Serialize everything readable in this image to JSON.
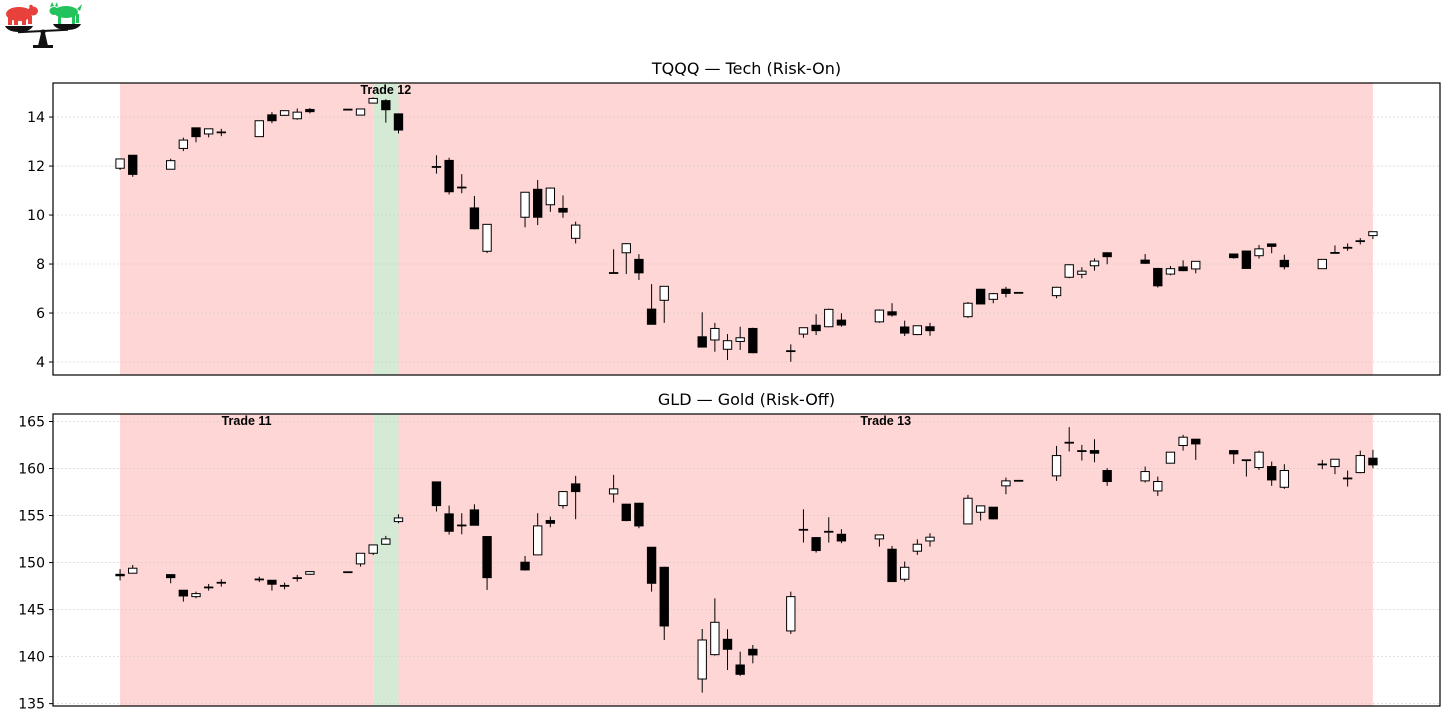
{
  "logo": {
    "icon": "bear-bull-balance-scale-logo",
    "colors": {
      "bear": "#e8403a",
      "bull": "#22c35a",
      "scale": "#111111"
    }
  },
  "colors": {
    "losing_trade_span": "#ffd6d6",
    "winning_trade_span": "#d5ead5",
    "up_candle_fill": "#ffffff",
    "down_candle_fill": "#000000",
    "candle_edge": "#000000",
    "grid": "#cccccc"
  },
  "chart_data": [
    {
      "type": "candlestick",
      "title": "TQQQ — Tech (Risk-On)",
      "xlabel": "",
      "ylabel": "",
      "ylim": [
        3.47,
        15.39
      ],
      "xlim": [
        -5.3,
        104.3
      ],
      "yticks": [
        "4",
        "6",
        "8",
        "10",
        "12",
        "14"
      ],
      "ytick_values": [
        4,
        6,
        8,
        10,
        12,
        14
      ],
      "grid": "horizontal dotted",
      "spans": [
        {
          "trade": "Trade 11",
          "from": 0,
          "to": 20,
          "result": "loss",
          "labeled": false
        },
        {
          "trade": "Trade 12",
          "from": 20,
          "to": 22,
          "result": "win",
          "labeled": true
        },
        {
          "trade": "Trade 13",
          "from": 22,
          "to": 99,
          "result": "loss",
          "labeled": false
        }
      ],
      "x": [
        0,
        1,
        4,
        5,
        6,
        7,
        8,
        11,
        12,
        13,
        14,
        15,
        18,
        19,
        20,
        21,
        22,
        25,
        26,
        27,
        28,
        29,
        32,
        33,
        34,
        35,
        36,
        39,
        40,
        41,
        42,
        43,
        46,
        47,
        48,
        49,
        50,
        53,
        54,
        55,
        56,
        57,
        60,
        61,
        62,
        63,
        64,
        67,
        68,
        69,
        70,
        71,
        74,
        75,
        76,
        77,
        78,
        81,
        82,
        83,
        84,
        85,
        88,
        89,
        90,
        91,
        92,
        95,
        96,
        97,
        98,
        99
      ],
      "ohlc": [
        [
          11.91,
          12.3,
          11.84,
          12.29
        ],
        [
          12.44,
          12.44,
          11.56,
          11.66
        ],
        [
          11.87,
          12.3,
          11.87,
          12.22
        ],
        [
          12.72,
          13.16,
          12.61,
          13.06
        ],
        [
          13.56,
          13.56,
          12.97,
          13.2
        ],
        [
          13.31,
          13.52,
          13.17,
          13.52
        ],
        [
          13.37,
          13.52,
          13.22,
          13.39
        ],
        [
          13.2,
          13.85,
          13.2,
          13.85
        ],
        [
          14.09,
          14.2,
          13.75,
          13.85
        ],
        [
          14.07,
          14.26,
          14.05,
          14.26
        ],
        [
          13.93,
          14.35,
          13.89,
          14.2
        ],
        [
          14.31,
          14.37,
          14.15,
          14.22
        ],
        [
          14.3,
          14.32,
          14.3,
          14.32
        ],
        [
          14.08,
          14.33,
          14.08,
          14.33
        ],
        [
          14.57,
          14.8,
          14.55,
          14.76
        ],
        [
          14.67,
          14.73,
          13.77,
          14.3
        ],
        [
          14.13,
          14.15,
          13.33,
          13.47
        ],
        [
          11.98,
          12.44,
          11.69,
          11.96
        ],
        [
          12.23,
          12.34,
          10.84,
          10.95
        ],
        [
          11.14,
          11.67,
          10.89,
          11.12
        ],
        [
          10.29,
          10.78,
          9.42,
          9.44
        ],
        [
          8.52,
          9.62,
          8.45,
          9.62
        ],
        [
          9.91,
          10.93,
          9.5,
          10.93
        ],
        [
          11.05,
          11.43,
          9.59,
          9.91
        ],
        [
          10.42,
          11.12,
          10.13,
          11.1
        ],
        [
          10.27,
          10.8,
          9.89,
          10.12
        ],
        [
          9.05,
          9.73,
          8.84,
          9.59
        ],
        [
          7.65,
          8.6,
          7.64,
          7.64
        ],
        [
          8.46,
          8.85,
          7.59,
          8.83
        ],
        [
          8.19,
          8.4,
          7.35,
          7.64
        ],
        [
          6.16,
          7.18,
          5.54,
          5.54
        ],
        [
          6.52,
          7.09,
          5.6,
          7.09
        ],
        [
          5.03,
          6.03,
          4.61,
          4.61
        ],
        [
          4.9,
          5.6,
          4.42,
          5.37
        ],
        [
          4.52,
          5.14,
          4.08,
          4.87
        ],
        [
          4.84,
          5.44,
          4.49,
          4.99
        ],
        [
          5.37,
          5.4,
          4.36,
          4.38
        ],
        [
          4.46,
          4.72,
          4.01,
          4.44
        ],
        [
          5.14,
          5.4,
          4.99,
          5.4
        ],
        [
          5.5,
          5.95,
          5.1,
          5.28
        ],
        [
          5.44,
          6.18,
          5.42,
          6.15
        ],
        [
          5.71,
          5.99,
          5.44,
          5.51
        ],
        [
          5.64,
          6.15,
          5.6,
          6.12
        ],
        [
          6.05,
          6.4,
          5.85,
          5.92
        ],
        [
          5.43,
          5.69,
          5.06,
          5.18
        ],
        [
          5.12,
          5.48,
          5.1,
          5.48
        ],
        [
          5.44,
          5.6,
          5.07,
          5.28
        ],
        [
          5.85,
          6.45,
          5.8,
          6.4
        ],
        [
          6.97,
          6.99,
          6.37,
          6.37
        ],
        [
          6.56,
          6.82,
          6.4,
          6.79
        ],
        [
          6.97,
          7.07,
          6.64,
          6.8
        ],
        [
          6.84,
          6.85,
          6.81,
          6.82
        ],
        [
          6.71,
          7.07,
          6.6,
          7.05
        ],
        [
          7.46,
          7.99,
          7.42,
          7.97
        ],
        [
          7.58,
          7.87,
          7.42,
          7.71
        ],
        [
          7.93,
          8.23,
          7.73,
          8.12
        ],
        [
          8.46,
          8.48,
          7.99,
          8.3
        ],
        [
          8.16,
          8.41,
          8.01,
          8.03
        ],
        [
          7.82,
          7.84,
          7.04,
          7.11
        ],
        [
          7.59,
          7.92,
          7.54,
          7.81
        ],
        [
          7.88,
          8.15,
          7.71,
          7.73
        ],
        [
          7.8,
          8.12,
          7.62,
          8.11
        ],
        [
          8.41,
          8.43,
          8.22,
          8.26
        ],
        [
          8.53,
          8.53,
          7.82,
          7.82
        ],
        [
          8.34,
          8.78,
          8.22,
          8.62
        ],
        [
          8.82,
          8.84,
          8.44,
          8.72
        ],
        [
          8.15,
          8.38,
          7.78,
          7.89
        ],
        [
          7.81,
          8.2,
          7.8,
          8.19
        ],
        [
          8.47,
          8.76,
          8.45,
          8.46
        ],
        [
          8.66,
          8.84,
          8.54,
          8.68
        ],
        [
          8.93,
          9.06,
          8.8,
          8.95
        ],
        [
          9.16,
          9.33,
          9.02,
          9.32
        ]
      ]
    },
    {
      "type": "candlestick",
      "title": "GLD — Gold (Risk-Off)",
      "xlabel": "",
      "ylabel": "",
      "ylim": [
        134.75,
        165.8
      ],
      "xlim": [
        -5.3,
        104.3
      ],
      "yticks": [
        "135",
        "140",
        "145",
        "150",
        "155",
        "160",
        "165"
      ],
      "ytick_values": [
        135,
        140,
        145,
        150,
        155,
        160,
        165
      ],
      "grid": "horizontal dotted",
      "spans": [
        {
          "trade": "Trade 11",
          "from": 0,
          "to": 20,
          "result": "loss",
          "labeled": true
        },
        {
          "trade": "Trade 12",
          "from": 20,
          "to": 22,
          "result": "win",
          "labeled": false
        },
        {
          "trade": "Trade 13",
          "from": 22,
          "to": 99,
          "result": "loss",
          "labeled": true
        }
      ],
      "x": [
        0,
        1,
        4,
        5,
        6,
        7,
        8,
        11,
        12,
        13,
        14,
        15,
        18,
        19,
        20,
        21,
        22,
        25,
        26,
        27,
        28,
        29,
        32,
        33,
        34,
        35,
        36,
        39,
        40,
        41,
        42,
        43,
        46,
        47,
        48,
        49,
        50,
        53,
        54,
        55,
        56,
        57,
        60,
        61,
        62,
        63,
        64,
        67,
        68,
        69,
        70,
        71,
        74,
        75,
        76,
        77,
        78,
        81,
        82,
        83,
        84,
        85,
        88,
        89,
        90,
        91,
        92,
        95,
        96,
        97,
        98,
        99
      ],
      "ohlc": [
        [
          148.75,
          149.3,
          148.1,
          148.6
        ],
        [
          148.87,
          149.75,
          148.85,
          149.4
        ],
        [
          148.72,
          148.75,
          147.8,
          148.4
        ],
        [
          147.06,
          147.06,
          145.85,
          146.45
        ],
        [
          146.38,
          146.91,
          146.21,
          146.7
        ],
        [
          147.33,
          147.73,
          147.02,
          147.4
        ],
        [
          147.84,
          148.23,
          147.45,
          147.9
        ],
        [
          148.2,
          148.5,
          147.94,
          148.25
        ],
        [
          148.12,
          148.12,
          147.02,
          147.7
        ],
        [
          147.57,
          147.87,
          147.16,
          147.53
        ],
        [
          148.35,
          148.69,
          147.98,
          148.39
        ],
        [
          148.76,
          149.1,
          148.7,
          149.04
        ],
        [
          149.0,
          149.05,
          148.98,
          149.02
        ],
        [
          149.86,
          151.0,
          149.57,
          150.99
        ],
        [
          150.99,
          151.9,
          150.8,
          151.88
        ],
        [
          151.95,
          152.84,
          151.9,
          152.52
        ],
        [
          154.36,
          155.14,
          154.18,
          154.75
        ],
        [
          158.58,
          158.6,
          155.43,
          156.06
        ],
        [
          155.18,
          156.06,
          152.98,
          153.33
        ],
        [
          153.95,
          155.25,
          153.01,
          153.99
        ],
        [
          155.6,
          156.2,
          153.95,
          153.97
        ],
        [
          152.77,
          152.8,
          147.09,
          148.4
        ],
        [
          150.04,
          150.71,
          149.15,
          149.22
        ],
        [
          150.82,
          155.25,
          150.8,
          153.9
        ],
        [
          154.47,
          154.89,
          153.76,
          154.18
        ],
        [
          156.06,
          157.6,
          155.74,
          157.55
        ],
        [
          158.37,
          159.22,
          154.61,
          157.55
        ],
        [
          157.3,
          159.33,
          156.38,
          157.84
        ],
        [
          156.21,
          156.25,
          154.4,
          154.47
        ],
        [
          156.31,
          156.35,
          153.65,
          153.9
        ],
        [
          151.63,
          151.65,
          146.91,
          147.8
        ],
        [
          149.5,
          149.55,
          141.77,
          143.26
        ],
        [
          137.62,
          142.94,
          136.17,
          141.77
        ],
        [
          140.21,
          146.2,
          140.1,
          143.65
        ],
        [
          141.84,
          142.91,
          138.58,
          140.78
        ],
        [
          139.11,
          140.53,
          137.95,
          138.12
        ],
        [
          140.78,
          141.24,
          139.29,
          140.18
        ],
        [
          142.73,
          146.91,
          142.41,
          146.38
        ],
        [
          153.49,
          155.67,
          152.13,
          153.53
        ],
        [
          152.66,
          152.7,
          151.06,
          151.28
        ],
        [
          153.32,
          154.82,
          152.13,
          153.28
        ],
        [
          153.01,
          153.55,
          152.06,
          152.3
        ],
        [
          152.52,
          152.96,
          151.7,
          152.94
        ],
        [
          151.42,
          151.77,
          147.95,
          147.98
        ],
        [
          148.23,
          150.11,
          147.98,
          149.5
        ],
        [
          151.21,
          152.48,
          150.82,
          151.95
        ],
        [
          152.3,
          153.12,
          151.7,
          152.7
        ],
        [
          154.11,
          157.2,
          154.05,
          156.84
        ],
        [
          155.35,
          156.05,
          154.47,
          156.03
        ],
        [
          155.89,
          155.9,
          154.6,
          154.65
        ],
        [
          158.16,
          159.04,
          157.27,
          158.69
        ],
        [
          158.7,
          158.76,
          158.68,
          158.74
        ],
        [
          159.22,
          162.41,
          158.69,
          161.38
        ],
        [
          162.75,
          164.4,
          161.81,
          162.79
        ],
        [
          161.9,
          162.52,
          160.85,
          161.86
        ],
        [
          161.91,
          163.12,
          160.67,
          161.63
        ],
        [
          159.79,
          160.04,
          158.16,
          158.62
        ],
        [
          158.69,
          160.21,
          158.51,
          159.68
        ],
        [
          157.62,
          159.15,
          157.09,
          158.62
        ],
        [
          160.57,
          161.76,
          160.55,
          161.74
        ],
        [
          162.45,
          163.58,
          161.91,
          163.33
        ],
        [
          163.12,
          163.15,
          160.92,
          162.62
        ],
        [
          161.91,
          161.92,
          160.5,
          161.56
        ],
        [
          160.93,
          160.94,
          159.15,
          160.91
        ],
        [
          160.11,
          161.91,
          159.86,
          161.74
        ],
        [
          160.21,
          160.74,
          158.16,
          158.79
        ],
        [
          158.01,
          160.46,
          157.84,
          159.79
        ],
        [
          160.44,
          160.92,
          159.93,
          160.48
        ],
        [
          160.21,
          161.0,
          159.4,
          160.99
        ],
        [
          158.95,
          159.79,
          158.09,
          158.99
        ],
        [
          159.57,
          161.91,
          159.5,
          161.38
        ],
        [
          161.1,
          161.99,
          160.04,
          160.39
        ]
      ]
    }
  ]
}
